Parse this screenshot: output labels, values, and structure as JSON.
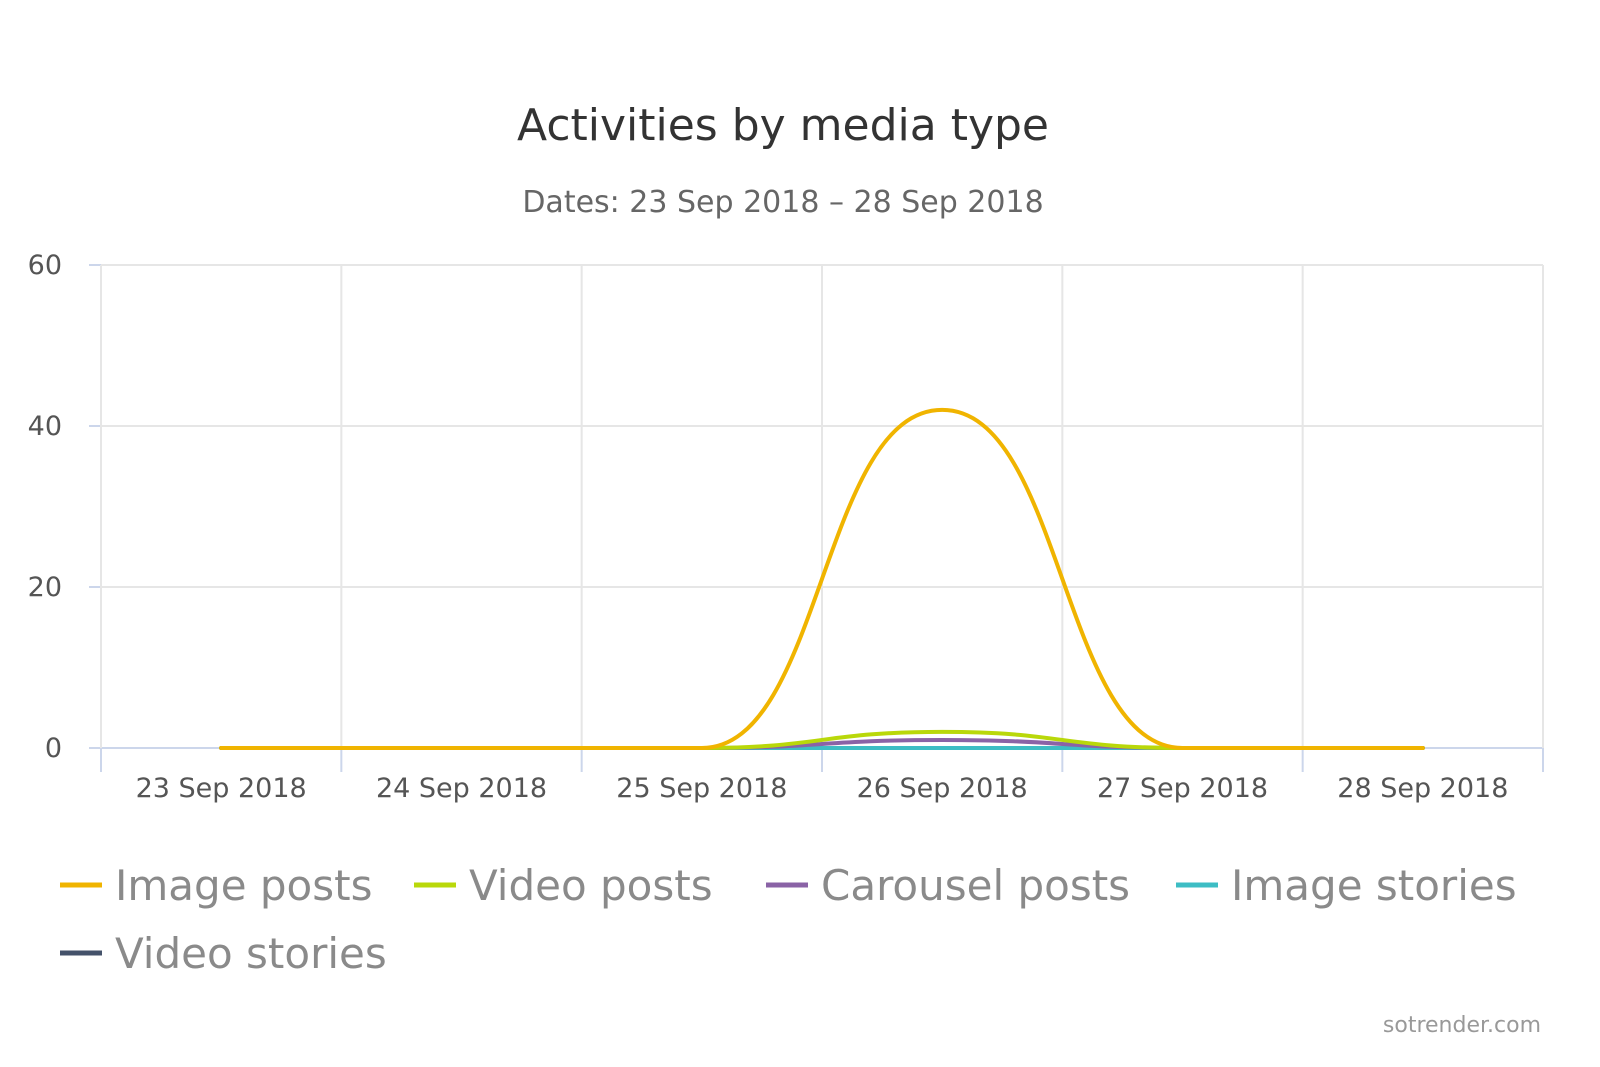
{
  "chart_data": {
    "type": "line",
    "title": "Activities by media type",
    "subtitle": "Dates: 23 Sep 2018 – 28 Sep 2018",
    "x": [
      "23 Sep 2018",
      "24 Sep 2018",
      "25 Sep 2018",
      "26 Sep 2018",
      "27 Sep 2018",
      "28 Sep 2018"
    ],
    "y_ticks": [
      "0",
      "20",
      "40",
      "60"
    ],
    "ylim": [
      0,
      60
    ],
    "grid": true,
    "legend_position": "bottom",
    "series": [
      {
        "name": "Image posts",
        "color": "#f0b400",
        "values": [
          0,
          0,
          0,
          42,
          0,
          0
        ]
      },
      {
        "name": "Video posts",
        "color": "#b9d80a",
        "values": [
          0,
          0,
          0,
          2,
          0,
          0
        ]
      },
      {
        "name": "Carousel posts",
        "color": "#8a63a6",
        "values": [
          0,
          0,
          0,
          1,
          0,
          0
        ]
      },
      {
        "name": "Image stories",
        "color": "#3dbdc4",
        "values": [
          0,
          0,
          0,
          0,
          0,
          0
        ]
      },
      {
        "name": "Video stories",
        "color": "#44526a",
        "values": [
          0,
          0,
          0,
          0,
          0,
          0
        ]
      }
    ]
  },
  "credit": "sotrender.com"
}
